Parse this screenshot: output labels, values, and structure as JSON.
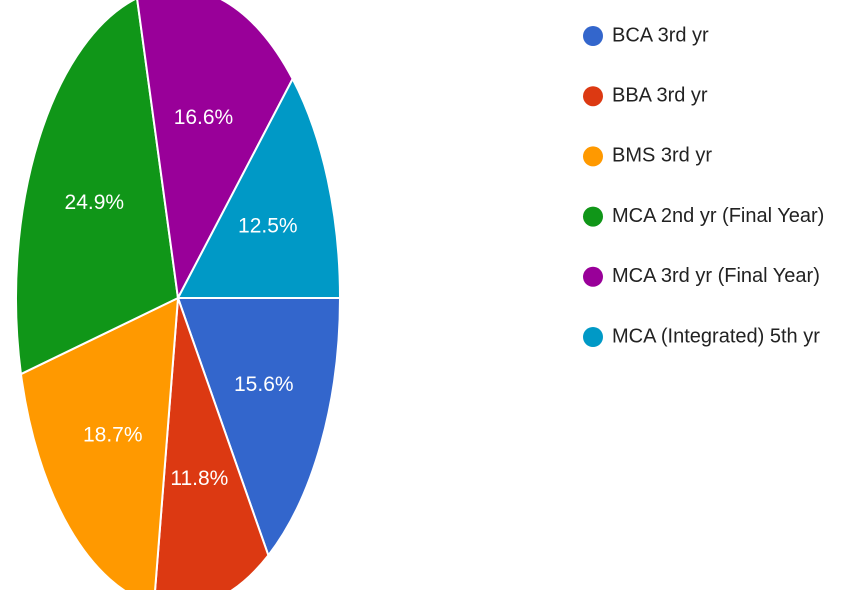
{
  "chart_data": {
    "type": "pie",
    "categories": [
      "BCA 3rd yr",
      "BBA 3rd yr",
      "BMS 3rd yr",
      "MCA 2nd yr (Final Year)",
      "MCA 3rd yr (Final Year)",
      "MCA (Integrated) 5th yr"
    ],
    "values": [
      15.6,
      11.8,
      18.7,
      24.9,
      16.6,
      12.5
    ],
    "value_labels": [
      "15.6%",
      "11.8%",
      "18.7%",
      "24.9%",
      "16.6%",
      "12.5%"
    ],
    "colors": [
      "#3366cc",
      "#dc3912",
      "#ff9900",
      "#109618",
      "#990099",
      "#0099c6"
    ],
    "legend": "right"
  }
}
